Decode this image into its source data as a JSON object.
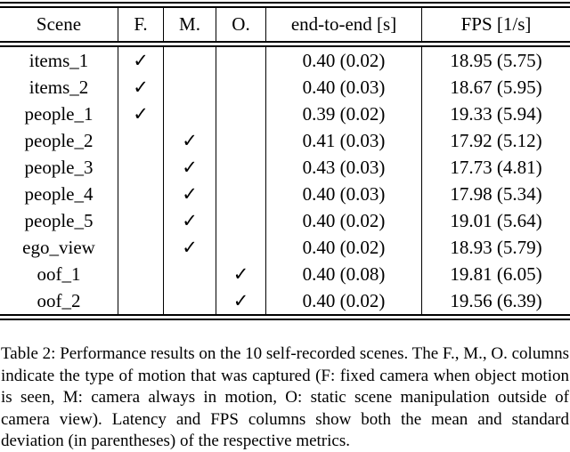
{
  "table": {
    "headers": [
      "Scene",
      "F.",
      "M.",
      "O.",
      "end-to-end [s]",
      "FPS [1/s]"
    ],
    "rows": [
      {
        "scene": "items_1",
        "f": "✓",
        "m": "",
        "o": "",
        "end_to_end": "0.40 (0.02)",
        "fps": "18.95 (5.75)"
      },
      {
        "scene": "items_2",
        "f": "✓",
        "m": "",
        "o": "",
        "end_to_end": "0.40 (0.03)",
        "fps": "18.67 (5.95)"
      },
      {
        "scene": "people_1",
        "f": "✓",
        "m": "",
        "o": "",
        "end_to_end": "0.39 (0.02)",
        "fps": "19.33 (5.94)"
      },
      {
        "scene": "people_2",
        "f": "",
        "m": "✓",
        "o": "",
        "end_to_end": "0.41 (0.03)",
        "fps": "17.92 (5.12)"
      },
      {
        "scene": "people_3",
        "f": "",
        "m": "✓",
        "o": "",
        "end_to_end": "0.43 (0.03)",
        "fps": "17.73 (4.81)"
      },
      {
        "scene": "people_4",
        "f": "",
        "m": "✓",
        "o": "",
        "end_to_end": "0.40 (0.03)",
        "fps": "17.98 (5.34)"
      },
      {
        "scene": "people_5",
        "f": "",
        "m": "✓",
        "o": "",
        "end_to_end": "0.40 (0.02)",
        "fps": "19.01 (5.64)"
      },
      {
        "scene": "ego_view",
        "f": "",
        "m": "✓",
        "o": "",
        "end_to_end": "0.40 (0.02)",
        "fps": "18.93 (5.79)"
      },
      {
        "scene": "oof_1",
        "f": "",
        "m": "",
        "o": "✓",
        "end_to_end": "0.40 (0.08)",
        "fps": "19.81 (6.05)"
      },
      {
        "scene": "oof_2",
        "f": "",
        "m": "",
        "o": "✓",
        "end_to_end": "0.40 (0.02)",
        "fps": "19.56 (6.39)"
      }
    ]
  },
  "caption": {
    "text": "Table 2: Performance results on the 10 self-recorded scenes. The F., M., O. columns indicate the type of motion that was captured (F: fixed camera when object motion is seen, M: camera always in motion, O: static scene manipulation outside of camera view). Latency and FPS columns show both the mean and standard deviation (in parentheses) of the respective metrics."
  }
}
